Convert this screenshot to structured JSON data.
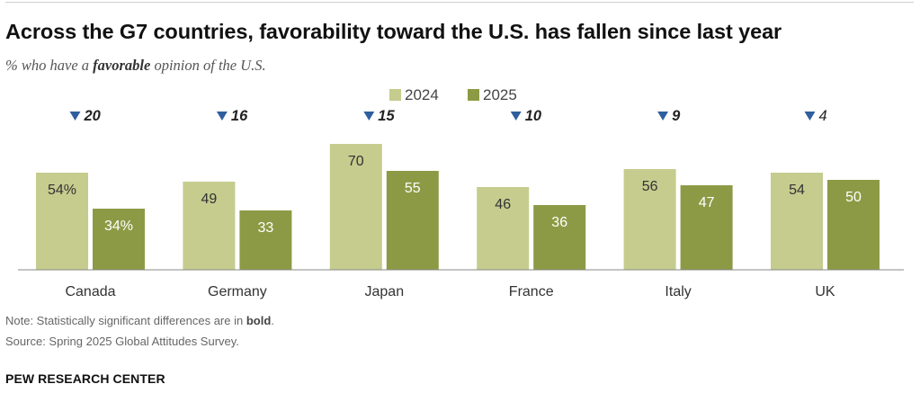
{
  "header": {
    "title": "Across the G7 countries, favorability toward the U.S. has fallen since last year",
    "subtitle_pre": "% who have a ",
    "subtitle_bold": "favorable",
    "subtitle_post": " opinion of the U.S."
  },
  "chart_data": {
    "type": "bar",
    "title": "Across the G7 countries, favorability toward the U.S. has fallen since last year",
    "ylabel": "% who have a favorable opinion of the U.S.",
    "xlabel": "",
    "ylim": [
      0,
      100
    ],
    "legend_position": "top-center",
    "categories": [
      "Canada",
      "Germany",
      "Japan",
      "France",
      "Italy",
      "UK"
    ],
    "series": [
      {
        "name": "2024",
        "color": "#c5cc8e",
        "values": [
          54,
          49,
          70,
          46,
          56,
          54
        ],
        "labels": [
          "54%",
          "49",
          "70",
          "46",
          "56",
          "54"
        ]
      },
      {
        "name": "2025",
        "color": "#8d9a45",
        "values": [
          34,
          33,
          55,
          36,
          47,
          50
        ],
        "labels": [
          "34%",
          "33",
          "55",
          "36",
          "47",
          "50"
        ]
      }
    ],
    "change": {
      "marker_color": "#2f5f9e",
      "values": [
        "20",
        "16",
        "15",
        "10",
        "9",
        "4"
      ],
      "significant": [
        true,
        true,
        true,
        true,
        true,
        false
      ]
    }
  },
  "notes": {
    "note_pre": "Note: Statistically significant differences are in ",
    "note_bold": "bold",
    "note_post": ".",
    "source": "Source: Spring 2025 Global Attitudes Survey.",
    "brand": "PEW RESEARCH CENTER"
  }
}
